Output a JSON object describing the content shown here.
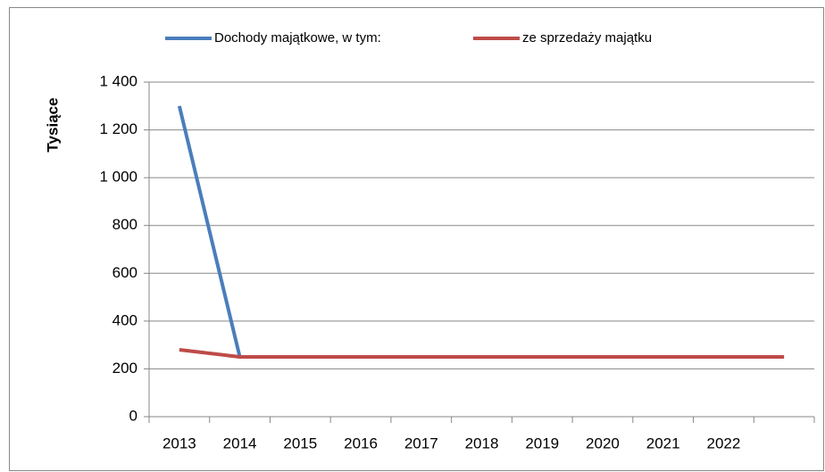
{
  "chart_data": {
    "type": "line",
    "y_label": "Tysiące",
    "categories": [
      "2013",
      "2014",
      "2015",
      "2016",
      "2017",
      "2018",
      "2019",
      "2020",
      "2021",
      "2022",
      null
    ],
    "series": [
      {
        "name": "Dochody majątkowe, w tym:",
        "color": "#4a7ebb",
        "values": [
          1300,
          250,
          250,
          250,
          250,
          250,
          250,
          250,
          250,
          250,
          null
        ]
      },
      {
        "name": "ze sprzedaży majątku",
        "color": "#be4b48",
        "values": [
          280,
          250,
          250,
          250,
          250,
          250,
          250,
          250,
          250,
          250,
          250
        ]
      }
    ],
    "ylim": [
      0,
      1400
    ],
    "yticks": [
      0,
      200,
      400,
      600,
      800,
      {
        "value": 1000,
        "label": "1 000"
      },
      {
        "value": 1200,
        "label": "1 200"
      },
      {
        "value": 1400,
        "label": "1 400"
      }
    ],
    "grid": true,
    "legend": "top"
  }
}
